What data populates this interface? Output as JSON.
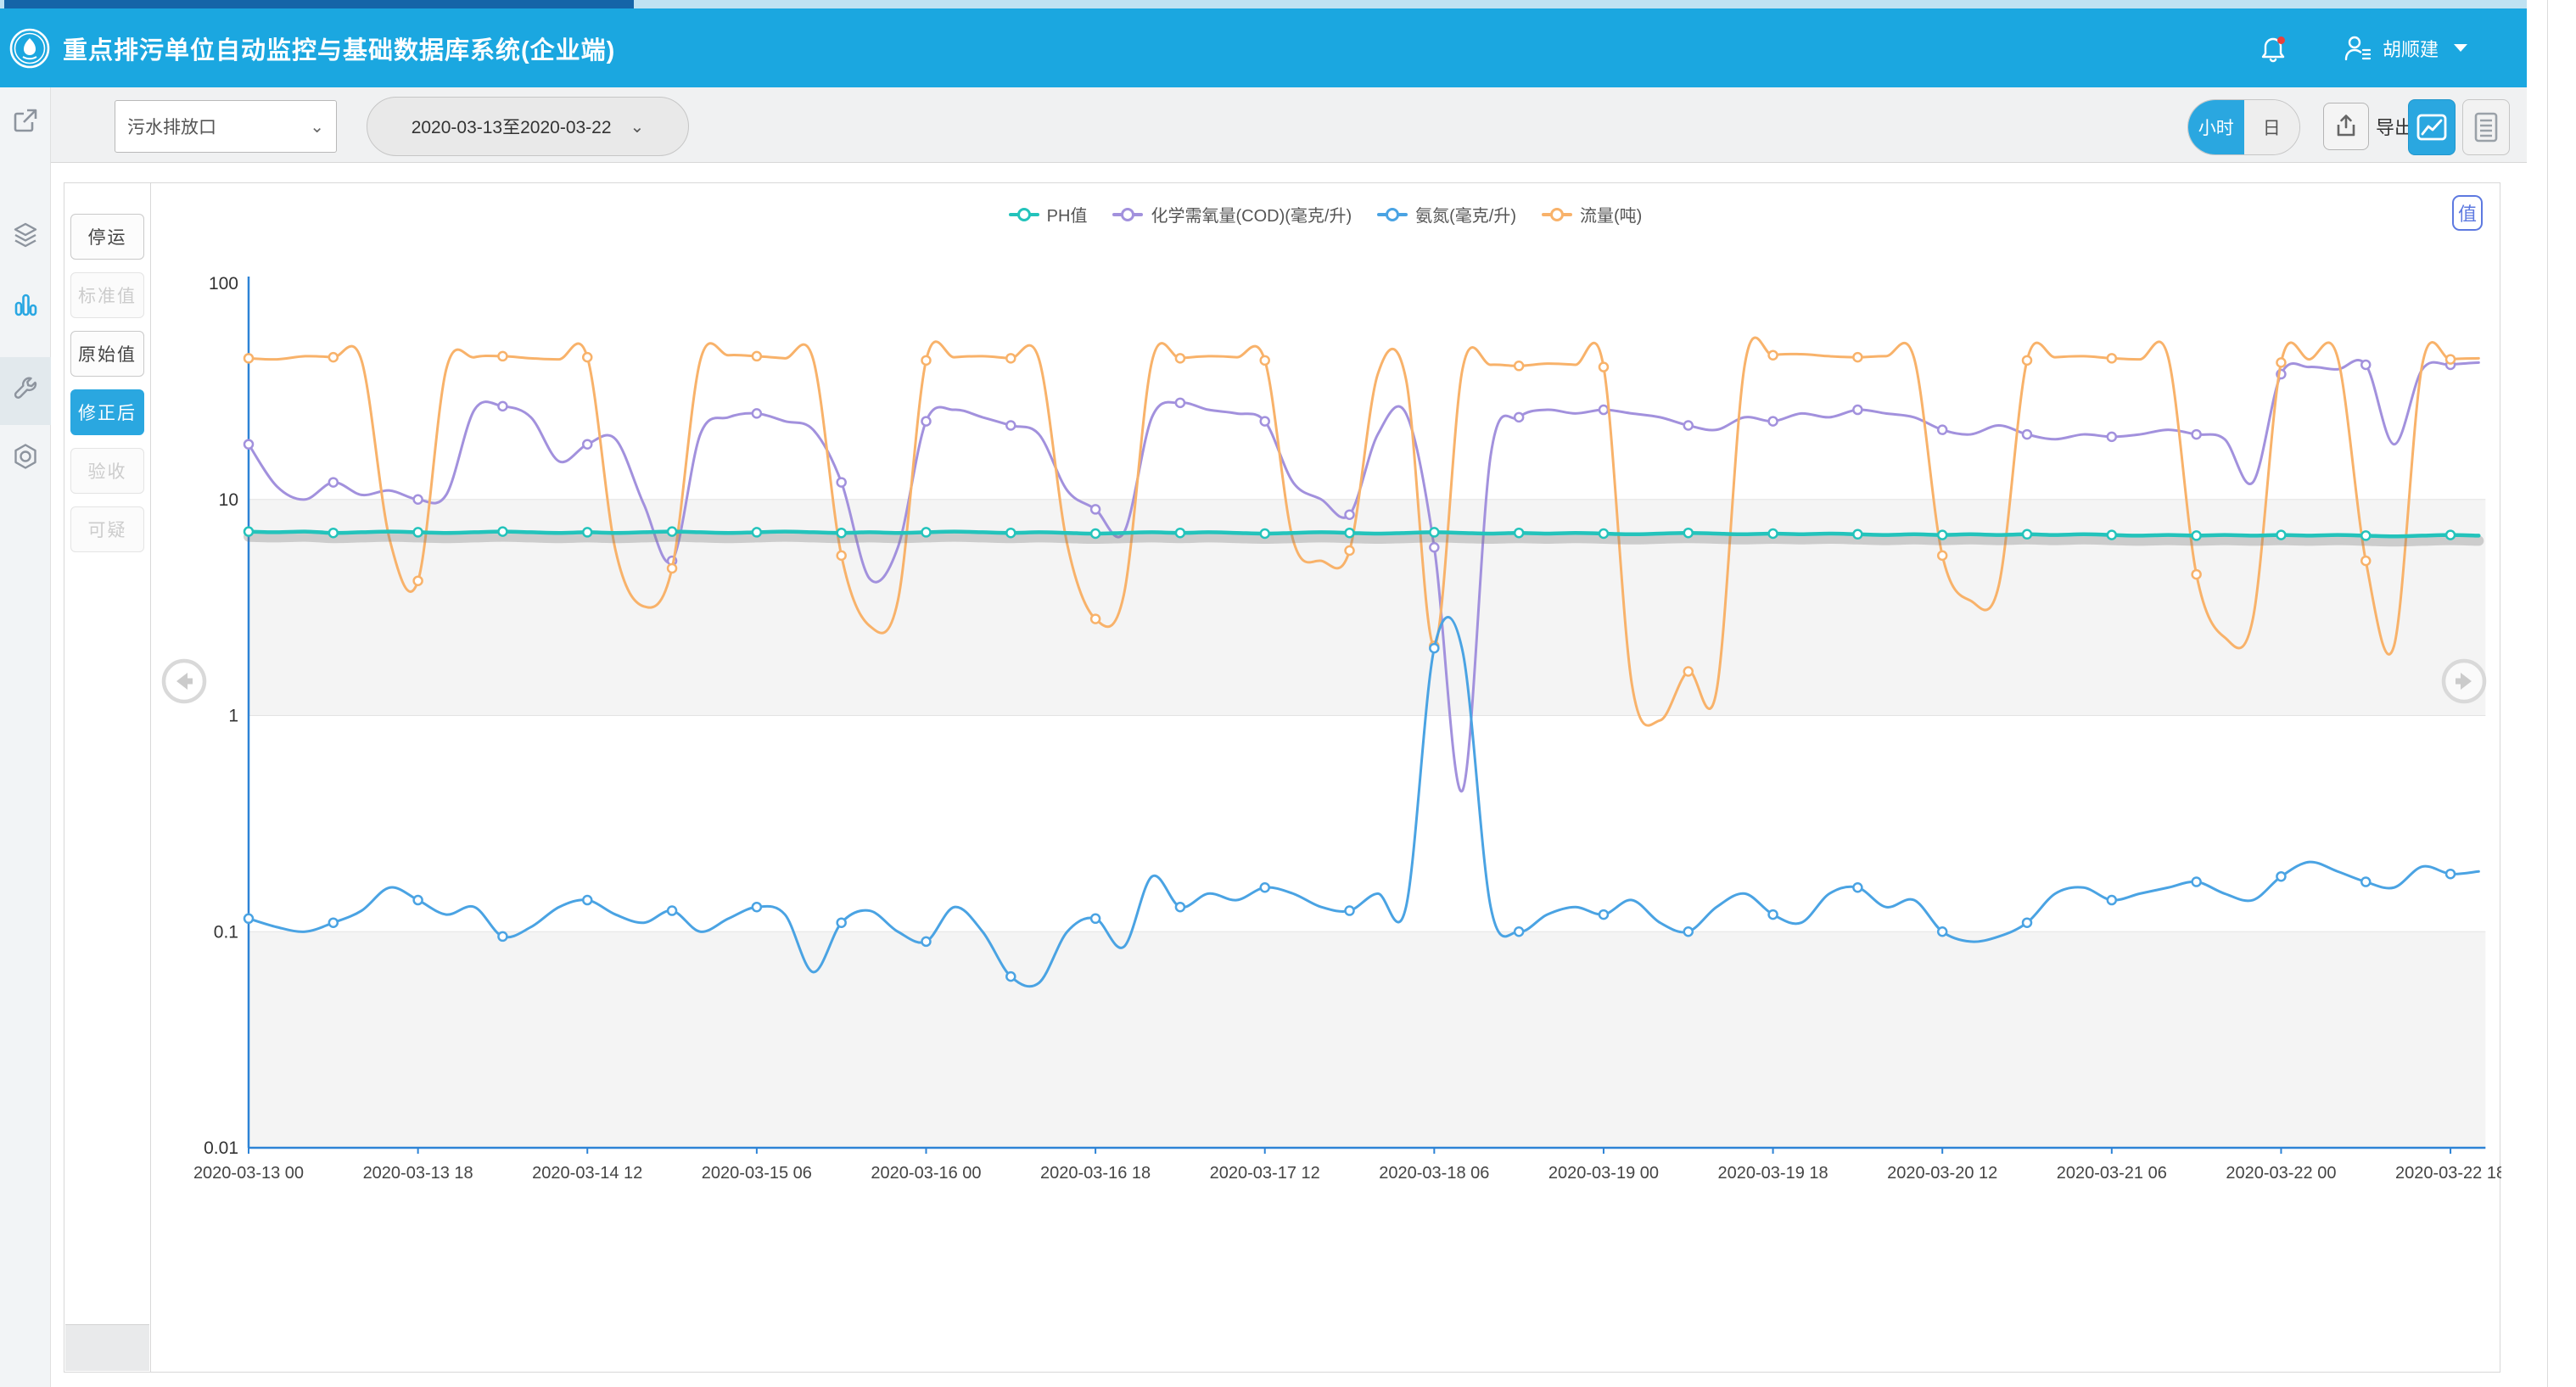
{
  "app": {
    "header_color": "#1ba7e0",
    "accent_color": "#2aa7e0",
    "title": "重点排污单位自动监控与基础数据库系统(企业端)",
    "user_name": "胡顺建",
    "notification_badge": true
  },
  "toolbar": {
    "station_select": {
      "value": "污水排放口"
    },
    "date_range": {
      "value": "2020-03-13至2020-03-22"
    },
    "interval_toggle": {
      "options": [
        "小时",
        "日"
      ],
      "active": "小时"
    },
    "export_label": "导出",
    "view_toggle": {
      "active": "chart"
    }
  },
  "icons": {
    "header": [
      "app-logo",
      "bell-icon",
      "user-icon",
      "caret-down-icon"
    ],
    "sidebar": [
      "external-link-icon",
      "layers-icon",
      "bar-chart-icon",
      "wrench-icon",
      "gear-icon"
    ],
    "sidebar_active": "bar-chart-icon",
    "toolbar": [
      "chevron-down-icon",
      "upload-icon",
      "chart-image-icon",
      "document-list-icon"
    ],
    "chart": [
      "value-label-icon",
      "arrow-left-circle-icon",
      "arrow-right-circle-icon"
    ]
  },
  "left_panel": {
    "buttons": [
      {
        "label": "停运",
        "state": "normal"
      },
      {
        "label": "标准值",
        "state": "disabled"
      },
      {
        "label": "原始值",
        "state": "normal"
      },
      {
        "label": "修正后",
        "state": "active"
      },
      {
        "label": "验收",
        "state": "disabled"
      },
      {
        "label": "可疑",
        "state": "disabled"
      }
    ]
  },
  "chart_corner_button": "值",
  "chart_data": {
    "type": "line",
    "title": "",
    "legend_position": "top",
    "grid": "horizontal-bands",
    "y_axis": {
      "scale": "log",
      "range": [
        0.01,
        100
      ],
      "tick_labels": [
        "100",
        "10",
        "1",
        "0.1",
        "0.01"
      ]
    },
    "x_axis": {
      "unit": "hour",
      "tick_interval_hours": 18,
      "tick_labels": [
        "2020-03-13 00",
        "2020-03-13 18",
        "2020-03-14 12",
        "2020-03-15 06",
        "2020-03-16 00",
        "2020-03-16 18",
        "2020-03-17 12",
        "2020-03-18 06",
        "2020-03-19 00",
        "2020-03-19 18",
        "2020-03-20 12",
        "2020-03-21 06",
        "2020-03-22 00",
        "2020-03-22 18"
      ]
    },
    "hours_step": 3,
    "series": [
      {
        "name": "PH值",
        "color": "#23c3bb",
        "shadow": true,
        "values": [
          7.1,
          7.05,
          7.1,
          7.0,
          7.05,
          7.1,
          7.05,
          7.0,
          7.05,
          7.1,
          7.05,
          7.0,
          7.05,
          7.0,
          7.05,
          7.1,
          7.05,
          7.0,
          7.05,
          7.1,
          7.05,
          7.0,
          7.05,
          7.0,
          7.05,
          7.1,
          7.05,
          7.0,
          7.05,
          7.0,
          6.95,
          7.0,
          7.05,
          7.0,
          7.05,
          7.0,
          6.95,
          7.0,
          7.05,
          7.0,
          6.95,
          7.0,
          7.05,
          7.0,
          6.95,
          7.0,
          6.95,
          7.0,
          6.95,
          6.9,
          6.95,
          7.0,
          6.95,
          6.9,
          6.95,
          6.9,
          6.95,
          6.9,
          6.85,
          6.9,
          6.85,
          6.9,
          6.85,
          6.9,
          6.85,
          6.9,
          6.85,
          6.8,
          6.85,
          6.8,
          6.85,
          6.8,
          6.85,
          6.8,
          6.85,
          6.8,
          6.75,
          6.8,
          6.85,
          6.8
        ]
      },
      {
        "name": "化学需氧量(COD)(毫克/升)",
        "color": "#a291dd",
        "shadow": false,
        "values": [
          18,
          11.5,
          10,
          12,
          10.5,
          11,
          10,
          10.5,
          26,
          27,
          24,
          15,
          18,
          19,
          9.5,
          5.2,
          20,
          24,
          25,
          23,
          21,
          12,
          4.3,
          6,
          23,
          26,
          24,
          22,
          20,
          11,
          9,
          7,
          24,
          28,
          26,
          25,
          23,
          12,
          10,
          8.5,
          20,
          25,
          6,
          0.45,
          16,
          24,
          26,
          25,
          26,
          25,
          24,
          22,
          21,
          24,
          23,
          25,
          24,
          26,
          25,
          24,
          21,
          20,
          22,
          20,
          19,
          20,
          19.5,
          20,
          21,
          20,
          19,
          12,
          38,
          41,
          40,
          42,
          18,
          40,
          42,
          43
        ]
      },
      {
        "name": "氨氮(毫克/升)",
        "color": "#4aa3e3",
        "shadow": false,
        "values": [
          0.115,
          0.105,
          0.1,
          0.11,
          0.125,
          0.16,
          0.14,
          0.12,
          0.13,
          0.095,
          0.105,
          0.13,
          0.14,
          0.12,
          0.11,
          0.125,
          0.1,
          0.115,
          0.13,
          0.12,
          0.065,
          0.11,
          0.125,
          0.1,
          0.09,
          0.13,
          0.1,
          0.062,
          0.058,
          0.1,
          0.115,
          0.085,
          0.18,
          0.13,
          0.15,
          0.14,
          0.16,
          0.15,
          0.13,
          0.125,
          0.15,
          0.13,
          2.05,
          2.0,
          0.13,
          0.1,
          0.12,
          0.13,
          0.12,
          0.14,
          0.11,
          0.1,
          0.13,
          0.15,
          0.12,
          0.11,
          0.15,
          0.16,
          0.13,
          0.14,
          0.1,
          0.09,
          0.095,
          0.11,
          0.15,
          0.16,
          0.14,
          0.15,
          0.16,
          0.17,
          0.15,
          0.14,
          0.18,
          0.21,
          0.19,
          0.17,
          0.16,
          0.2,
          0.185,
          0.19
        ]
      },
      {
        "name": "流量(吨)",
        "color": "#f8b26a",
        "shadow": false,
        "values": [
          45,
          44.5,
          46,
          45.5,
          44,
          6.5,
          4.2,
          40,
          45.5,
          46,
          45,
          44.5,
          45.5,
          5.8,
          3.2,
          4.8,
          44,
          46.5,
          46,
          45,
          44.5,
          5.5,
          2.6,
          3.4,
          44,
          45.5,
          46,
          45,
          44.5,
          6.2,
          2.8,
          3.6,
          43.5,
          45,
          46,
          45.5,
          44,
          6.5,
          5.2,
          5.8,
          38,
          36,
          2.1,
          40,
          42,
          41.5,
          42.5,
          42,
          41,
          1.4,
          0.95,
          1.6,
          1.3,
          42,
          46.5,
          47,
          46,
          45.5,
          46,
          45,
          5.5,
          3.4,
          4,
          44,
          45.5,
          46,
          45,
          44.5,
          45.5,
          4.5,
          2.3,
          2.8,
          43,
          44.5,
          45.5,
          5.2,
          2.1,
          42,
          44.5,
          45
        ]
      }
    ]
  }
}
